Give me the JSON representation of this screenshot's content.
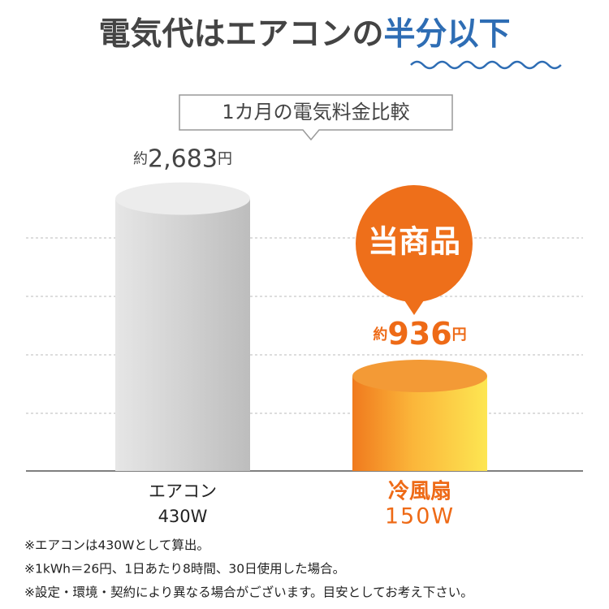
{
  "chart_data": {
    "type": "bar",
    "title": "電気代はエアコンの",
    "title_highlight": "半分以下",
    "subtitle": "1カ月の電気料金比較",
    "categories": [
      "エアコン",
      "冷風扇"
    ],
    "category_notes": [
      "430W",
      "150W"
    ],
    "values": [
      2683,
      936
    ],
    "value_labels": [
      "約2,683円",
      "約936円"
    ],
    "colors": [
      "#cfcfcf",
      "#f2841f"
    ],
    "ylim": [
      0,
      3000
    ],
    "annotation": "当商品",
    "footnotes": [
      "※エアコンは430Wとして算出。",
      "※1kWh＝26円、1日あたり8時間、30日使用した場合。",
      "※設定・環境・契約により異なる場合がございます。目安としてお考え下さい。"
    ]
  }
}
